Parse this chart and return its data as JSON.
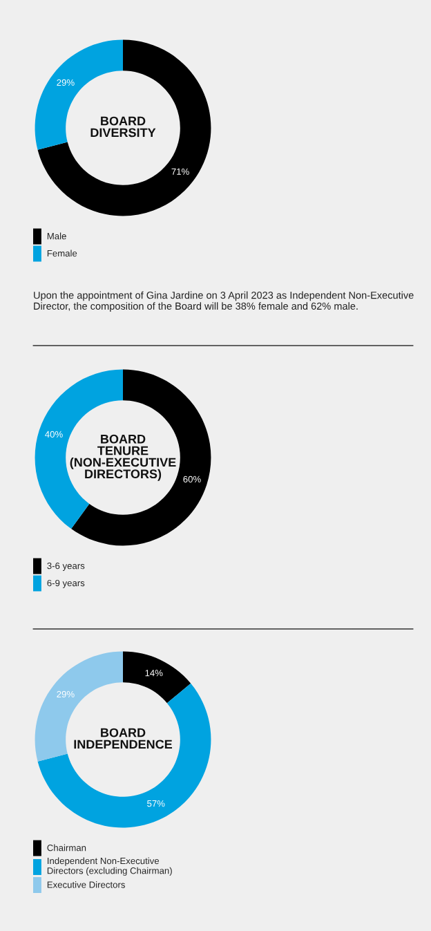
{
  "chart_data": [
    {
      "type": "donut",
      "title": "BOARD\nDIVERSITY",
      "categories": [
        "Male",
        "Female"
      ],
      "values": [
        71,
        29
      ],
      "colors": [
        "#000000",
        "#00a3e0"
      ],
      "value_labels": [
        "71%",
        "29%"
      ],
      "legend": "bottom",
      "annotations": [
        "Upon the appointment of Gina Jardine on 3 April 2023 as Independent Non-Executive Director, the composition of the Board will be 38% female and 62% male."
      ]
    },
    {
      "type": "donut",
      "title": "BOARD\nTENURE\n(NON-EXECUTIVE\nDIRECTORS)",
      "categories": [
        "3-6 years",
        "6-9 years"
      ],
      "values": [
        60,
        40
      ],
      "colors": [
        "#000000",
        "#00a3e0"
      ],
      "value_labels": [
        "60%",
        "40%"
      ],
      "legend": "bottom"
    },
    {
      "type": "donut",
      "title": "BOARD\nINDEPENDENCE",
      "categories": [
        "Chairman",
        "Independent Non-Executive\nDirectors (excluding Chairman)",
        "Executive Directors"
      ],
      "values": [
        14,
        57,
        29
      ],
      "colors": [
        "#000000",
        "#00a3e0",
        "#8ec9ec"
      ],
      "value_labels": [
        "14%",
        "57%",
        "29%"
      ],
      "legend": "bottom"
    }
  ]
}
